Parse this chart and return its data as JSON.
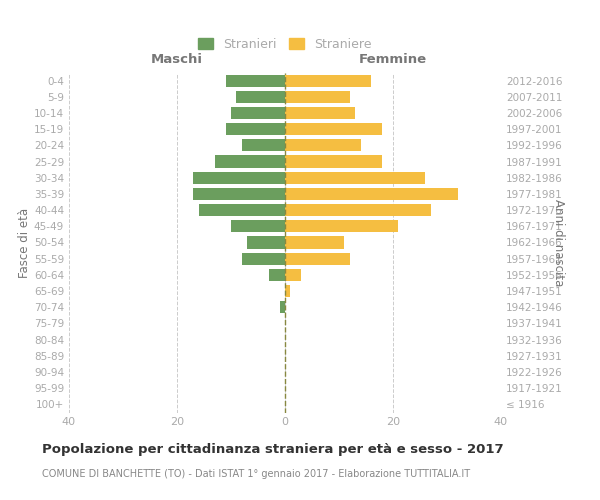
{
  "age_groups": [
    "100+",
    "95-99",
    "90-94",
    "85-89",
    "80-84",
    "75-79",
    "70-74",
    "65-69",
    "60-64",
    "55-59",
    "50-54",
    "45-49",
    "40-44",
    "35-39",
    "30-34",
    "25-29",
    "20-24",
    "15-19",
    "10-14",
    "5-9",
    "0-4"
  ],
  "birth_years": [
    "≤ 1916",
    "1917-1921",
    "1922-1926",
    "1927-1931",
    "1932-1936",
    "1937-1941",
    "1942-1946",
    "1947-1951",
    "1952-1956",
    "1957-1961",
    "1962-1966",
    "1967-1971",
    "1972-1976",
    "1977-1981",
    "1982-1986",
    "1987-1991",
    "1992-1996",
    "1997-2001",
    "2002-2006",
    "2007-2011",
    "2012-2016"
  ],
  "maschi": [
    0,
    0,
    0,
    0,
    0,
    0,
    1,
    0,
    3,
    8,
    7,
    10,
    16,
    17,
    17,
    13,
    8,
    11,
    10,
    9,
    11
  ],
  "femmine": [
    0,
    0,
    0,
    0,
    0,
    0,
    0,
    1,
    3,
    12,
    11,
    21,
    27,
    32,
    26,
    18,
    14,
    18,
    13,
    12,
    16
  ],
  "color_maschi": "#6b9e5e",
  "color_femmine": "#f5be41",
  "color_center_line": "#888840",
  "title": "Popolazione per cittadinanza straniera per età e sesso - 2017",
  "subtitle": "COMUNE DI BANCHETTE (TO) - Dati ISTAT 1° gennaio 2017 - Elaborazione TUTTITALIA.IT",
  "label_maschi": "Maschi",
  "label_femmine": "Femmine",
  "legend_stranieri": "Stranieri",
  "legend_straniere": "Straniere",
  "ylabel_left": "Fasce di età",
  "ylabel_right": "Anni di nascita",
  "xlim": 40,
  "background_color": "#ffffff",
  "grid_color": "#cccccc",
  "tick_color": "#aaaaaa",
  "header_color": "#777777",
  "title_color": "#333333",
  "subtitle_color": "#888888"
}
